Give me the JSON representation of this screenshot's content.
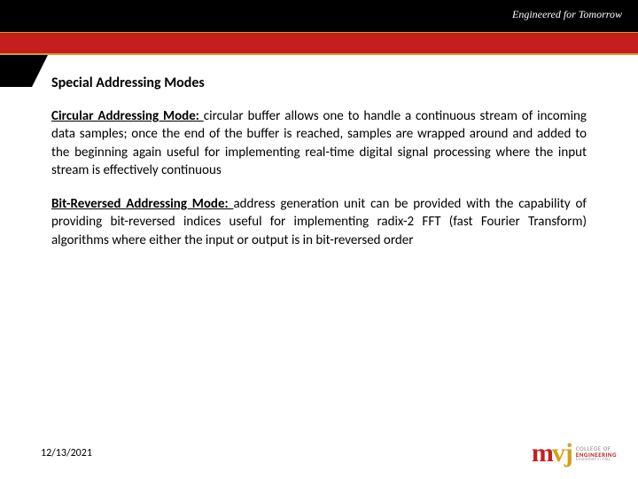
{
  "header": {
    "tagline": "Engineered for Tomorrow"
  },
  "content": {
    "section_title": "Special Addressing Modes",
    "mode1_label": "Circular Addressing Mode: ",
    "mode1_text": "circular buffer allows one to handle a continuous stream of incoming data samples; once the end of the buffer is reached, samples are wrapped around and added to the beginning again  useful for implementing real-time digital signal processing where the input stream is effectively continuous",
    "mode2_label": "Bit-Reversed Addressing Mode: ",
    "mode2_text": "address generation unit can be provided with the capability of providing bit-reversed indices useful for implementing radix-2 FFT (fast Fourier Transform) algorithms where either the input or output is in bit-reversed order"
  },
  "footer": {
    "date": "12/13/2021",
    "logo_m": "m",
    "logo_vj": "vj",
    "logo_line1": "COLLEGE OF",
    "logo_line2": "ENGINEERING",
    "logo_line3": "Established in 1982"
  },
  "colors": {
    "red": "#c41e1e",
    "gold": "#d4a017",
    "black": "#000000"
  }
}
